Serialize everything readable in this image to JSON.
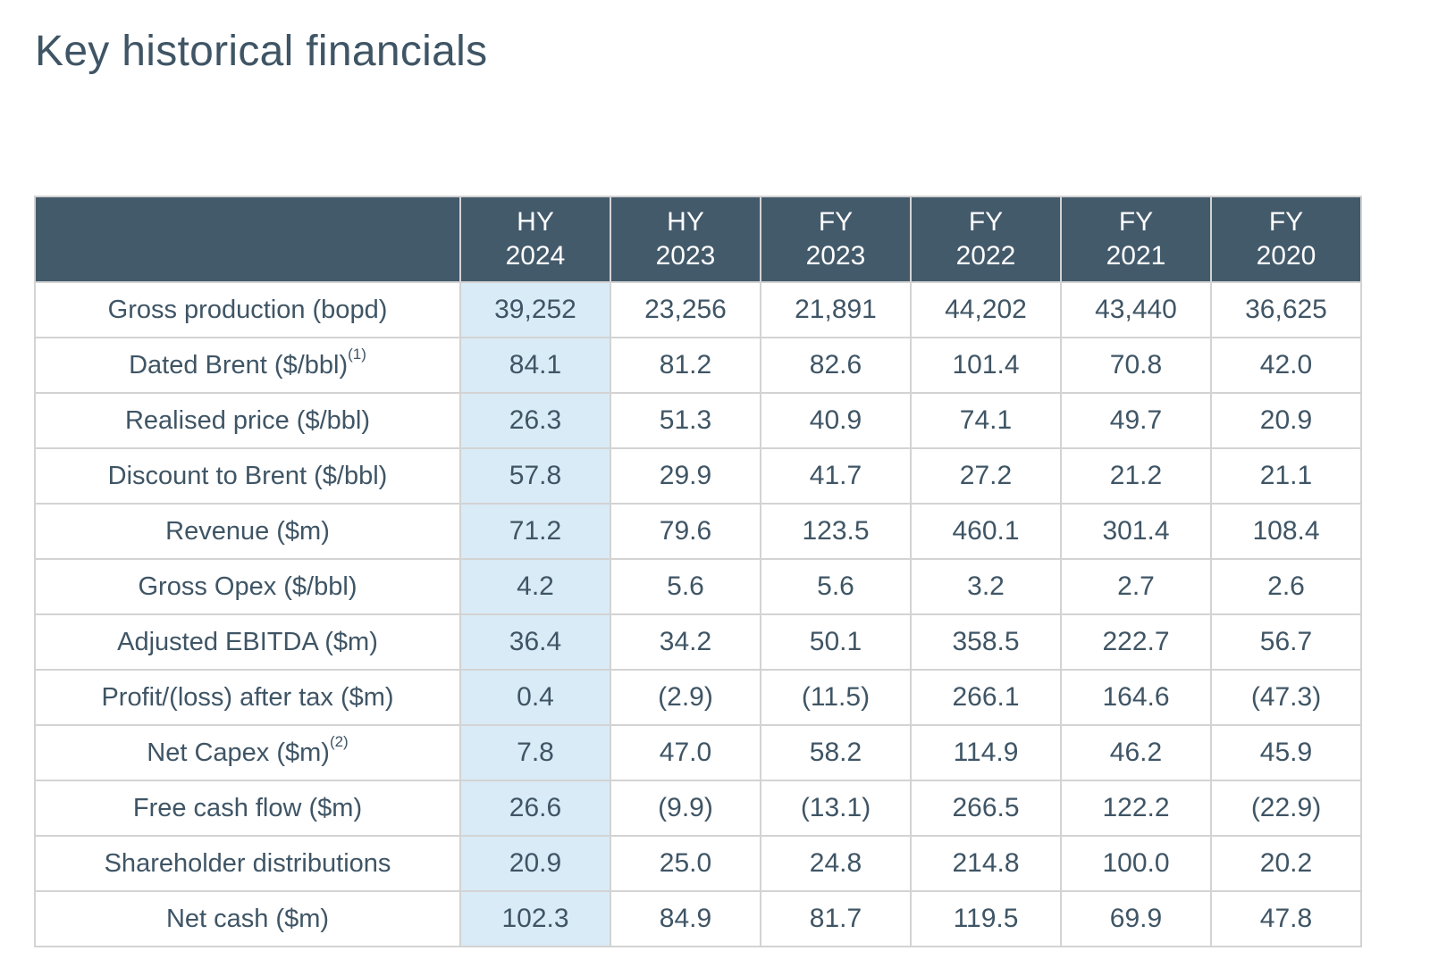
{
  "title": "Key historical financials",
  "colors": {
    "header_bg": "#435a6b",
    "highlight_col": "#d9ebf6",
    "text": "#3f5565",
    "grid": "#d3d3d3"
  },
  "columns": [
    {
      "line1": "HY",
      "line2": "2024"
    },
    {
      "line1": "HY",
      "line2": "2023"
    },
    {
      "line1": "FY",
      "line2": "2023"
    },
    {
      "line1": "FY",
      "line2": "2022"
    },
    {
      "line1": "FY",
      "line2": "2021"
    },
    {
      "line1": "FY",
      "line2": "2020"
    }
  ],
  "rows": [
    {
      "label": "Gross production (bopd)",
      "note": "",
      "values": [
        "39,252",
        "23,256",
        "21,891",
        "44,202",
        "43,440",
        "36,625"
      ]
    },
    {
      "label": "Dated Brent ($/bbl)",
      "note": "(1)",
      "values": [
        "84.1",
        "81.2",
        "82.6",
        "101.4",
        "70.8",
        "42.0"
      ]
    },
    {
      "label": "Realised price ($/bbl)",
      "note": "",
      "values": [
        "26.3",
        "51.3",
        "40.9",
        "74.1",
        "49.7",
        "20.9"
      ]
    },
    {
      "label": "Discount to Brent ($/bbl)",
      "note": "",
      "values": [
        "57.8",
        "29.9",
        "41.7",
        "27.2",
        "21.2",
        "21.1"
      ]
    },
    {
      "label": "Revenue ($m)",
      "note": "",
      "values": [
        "71.2",
        "79.6",
        "123.5",
        "460.1",
        "301.4",
        "108.4"
      ]
    },
    {
      "label": "Gross Opex ($/bbl)",
      "note": "",
      "values": [
        "4.2",
        "5.6",
        "5.6",
        "3.2",
        "2.7",
        "2.6"
      ]
    },
    {
      "label": "Adjusted EBITDA ($m)",
      "note": "",
      "values": [
        "36.4",
        "34.2",
        "50.1",
        "358.5",
        "222.7",
        "56.7"
      ]
    },
    {
      "label": "Profit/(loss) after tax ($m)",
      "note": "",
      "values": [
        "0.4",
        "(2.9)",
        "(11.5)",
        "266.1",
        "164.6",
        "(47.3)"
      ]
    },
    {
      "label": "Net Capex ($m)",
      "note": "(2)",
      "values": [
        "7.8",
        "47.0",
        "58.2",
        "114.9",
        "46.2",
        "45.9"
      ]
    },
    {
      "label": "Free cash flow ($m)",
      "note": "",
      "values": [
        "26.6",
        "(9.9)",
        "(13.1)",
        "266.5",
        "122.2",
        "(22.9)"
      ]
    },
    {
      "label": "Shareholder distributions",
      "note": "",
      "values": [
        "20.9",
        "25.0",
        "24.8",
        "214.8",
        "100.0",
        "20.2"
      ]
    },
    {
      "label": "Net cash ($m)",
      "note": "",
      "values": [
        "102.3",
        "84.9",
        "81.7",
        "119.5",
        "69.9",
        "47.8"
      ]
    }
  ]
}
